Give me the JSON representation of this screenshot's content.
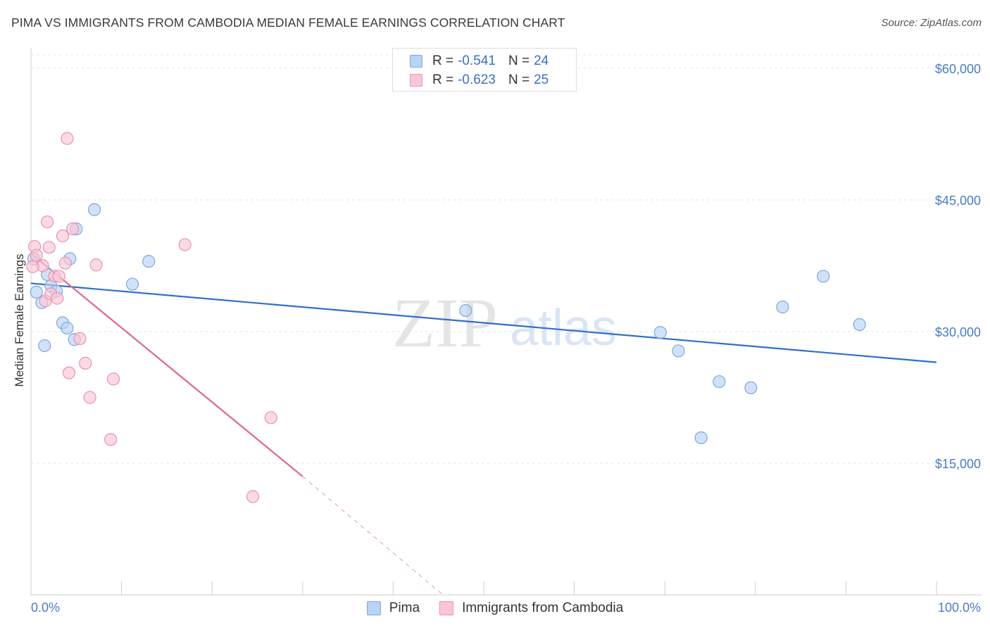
{
  "header": {
    "title": "PIMA VS IMMIGRANTS FROM CAMBODIA MEDIAN FEMALE EARNINGS CORRELATION CHART",
    "source": "Source: ZipAtlas.com"
  },
  "watermark": {
    "zip": "ZIP",
    "atlas": "atlas"
  },
  "legend": {
    "rows": [
      {
        "r_label": "R =",
        "r_value": "-0.541",
        "n_label": "N =",
        "n_value": "24"
      },
      {
        "r_label": "R =",
        "r_value": "-0.623",
        "n_label": "N =",
        "n_value": "25"
      }
    ]
  },
  "colors": {
    "pima_fill": "#b9d3f5",
    "pima_stroke": "#7ea6e0",
    "pima_line": "#2f6fc9",
    "cam_fill": "#f9c6d6",
    "cam_stroke": "#ec8fb0",
    "cam_line": "#e06592",
    "grid": "#e6e6e6",
    "axis": "#cccccc",
    "tick_text": "#4a7cc7"
  },
  "chart_data": {
    "type": "scatter",
    "title": "PIMA VS IMMIGRANTS FROM CAMBODIA MEDIAN FEMALE EARNINGS CORRELATION CHART",
    "xlabel": "",
    "ylabel": "Median Female Earnings",
    "xlim": [
      0,
      100
    ],
    "ylim": [
      0,
      61500
    ],
    "x_tick_labels": [
      "0.0%",
      "100.0%"
    ],
    "y_ticks": [
      15000,
      30000,
      45000,
      60000
    ],
    "y_tick_labels": [
      "$15,000",
      "$30,000",
      "$45,000",
      "$60,000"
    ],
    "legend_position": "top-center",
    "series": [
      {
        "name": "Pima",
        "points": [
          [
            0.3,
            38300
          ],
          [
            0.6,
            34500
          ],
          [
            1.2,
            33300
          ],
          [
            1.8,
            36500
          ],
          [
            2.2,
            35200
          ],
          [
            2.8,
            34600
          ],
          [
            1.5,
            28400
          ],
          [
            3.5,
            31000
          ],
          [
            4.0,
            30400
          ],
          [
            4.3,
            38300
          ],
          [
            4.8,
            29100
          ],
          [
            5.0,
            41700
          ],
          [
            7.0,
            43900
          ],
          [
            11.2,
            35400
          ],
          [
            13.0,
            38000
          ],
          [
            48.0,
            32400
          ],
          [
            69.5,
            29900
          ],
          [
            71.5,
            27800
          ],
          [
            74.0,
            17900
          ],
          [
            76.0,
            24300
          ],
          [
            79.5,
            23600
          ],
          [
            83.0,
            32800
          ],
          [
            87.5,
            36300
          ],
          [
            91.5,
            30800
          ]
        ],
        "trend": {
          "x": [
            0,
            100
          ],
          "y": [
            35500,
            26500
          ],
          "style": "solid"
        }
      },
      {
        "name": "Immigrants from Cambodia",
        "points": [
          [
            0.4,
            39700
          ],
          [
            0.6,
            38700
          ],
          [
            1.3,
            37500
          ],
          [
            1.6,
            33500
          ],
          [
            1.8,
            42500
          ],
          [
            2.0,
            39600
          ],
          [
            2.2,
            34300
          ],
          [
            2.6,
            36300
          ],
          [
            2.9,
            33800
          ],
          [
            3.1,
            36300
          ],
          [
            3.5,
            40900
          ],
          [
            3.8,
            37800
          ],
          [
            4.0,
            52000
          ],
          [
            4.2,
            25300
          ],
          [
            4.6,
            41700
          ],
          [
            5.4,
            29200
          ],
          [
            6.0,
            26400
          ],
          [
            6.5,
            22500
          ],
          [
            7.2,
            37600
          ],
          [
            8.8,
            17700
          ],
          [
            9.1,
            24600
          ],
          [
            17.0,
            39900
          ],
          [
            26.5,
            20200
          ],
          [
            24.5,
            11200
          ],
          [
            0.2,
            37400
          ]
        ],
        "trend": {
          "x": [
            0,
            30.0
          ],
          "y": [
            38900,
            13500
          ],
          "style": "solid",
          "extension": {
            "x": [
              30.0,
              45.5
            ],
            "y": [
              13500,
              0
            ],
            "style": "dashed"
          }
        }
      }
    ]
  },
  "bottom_legend": {
    "items": [
      {
        "label": "Pima"
      },
      {
        "label": "Immigrants from Cambodia"
      }
    ]
  }
}
